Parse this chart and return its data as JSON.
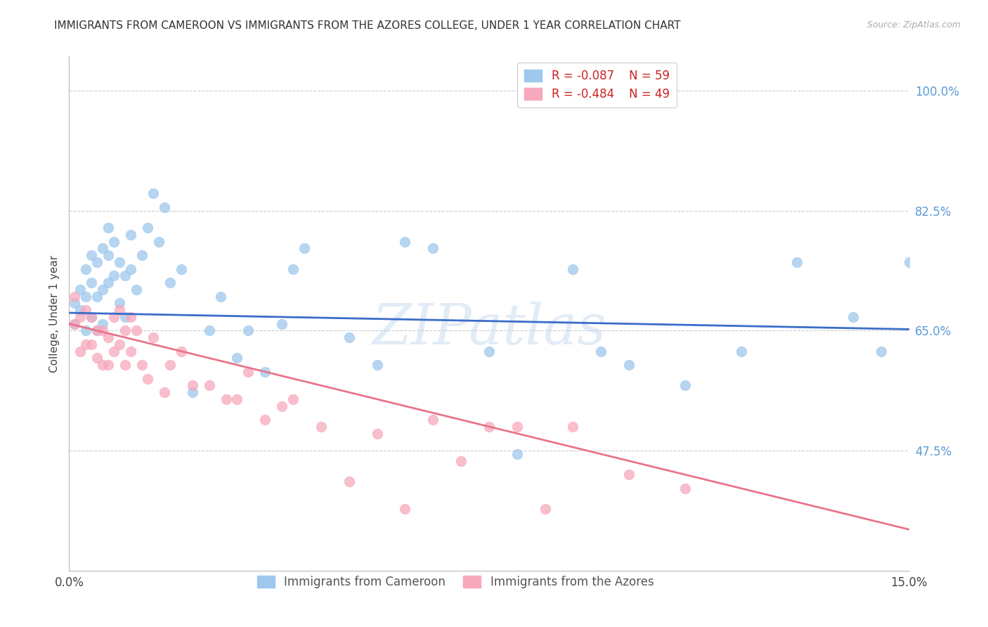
{
  "title": "IMMIGRANTS FROM CAMEROON VS IMMIGRANTS FROM THE AZORES COLLEGE, UNDER 1 YEAR CORRELATION CHART",
  "source": "Source: ZipAtlas.com",
  "ylabel": "College, Under 1 year",
  "xlim": [
    0.0,
    0.15
  ],
  "ylim": [
    0.3,
    1.05
  ],
  "xtick_positions": [
    0.0,
    0.05,
    0.1,
    0.15
  ],
  "xticklabels": [
    "0.0%",
    "",
    "",
    "15.0%"
  ],
  "ytick_positions": [
    0.475,
    0.65,
    0.825,
    1.0
  ],
  "yticklabels": [
    "47.5%",
    "65.0%",
    "82.5%",
    "100.0%"
  ],
  "grid_color": "#cccccc",
  "background_color": "#ffffff",
  "watermark": "ZIPatlas",
  "legend_r1": "R = -0.087",
  "legend_n1": "N = 59",
  "legend_r2": "R = -0.484",
  "legend_n2": "N = 49",
  "series1_color": "#9ec8ed",
  "series2_color": "#f7a8bc",
  "line1_color": "#3a6dc9",
  "line2_color": "#e8758a",
  "title_fontsize": 11,
  "axis_label_fontsize": 11,
  "tick_fontsize": 12,
  "source_fontsize": 9,
  "series1_x": [
    0.001,
    0.001,
    0.002,
    0.002,
    0.003,
    0.003,
    0.003,
    0.004,
    0.004,
    0.004,
    0.005,
    0.005,
    0.005,
    0.006,
    0.006,
    0.006,
    0.007,
    0.007,
    0.007,
    0.008,
    0.008,
    0.009,
    0.009,
    0.01,
    0.01,
    0.011,
    0.011,
    0.012,
    0.013,
    0.014,
    0.015,
    0.016,
    0.017,
    0.018,
    0.02,
    0.022,
    0.025,
    0.027,
    0.03,
    0.032,
    0.035,
    0.038,
    0.04,
    0.042,
    0.05,
    0.055,
    0.06,
    0.065,
    0.075,
    0.08,
    0.09,
    0.095,
    0.1,
    0.11,
    0.12,
    0.13,
    0.14,
    0.145,
    0.15
  ],
  "series1_y": [
    0.66,
    0.69,
    0.68,
    0.71,
    0.65,
    0.7,
    0.74,
    0.67,
    0.72,
    0.76,
    0.65,
    0.7,
    0.75,
    0.66,
    0.71,
    0.77,
    0.72,
    0.76,
    0.8,
    0.73,
    0.78,
    0.69,
    0.75,
    0.67,
    0.73,
    0.74,
    0.79,
    0.71,
    0.76,
    0.8,
    0.85,
    0.78,
    0.83,
    0.72,
    0.74,
    0.56,
    0.65,
    0.7,
    0.61,
    0.65,
    0.59,
    0.66,
    0.74,
    0.77,
    0.64,
    0.6,
    0.78,
    0.77,
    0.62,
    0.47,
    0.74,
    0.62,
    0.6,
    0.57,
    0.62,
    0.75,
    0.67,
    0.62,
    0.75
  ],
  "series2_x": [
    0.001,
    0.001,
    0.002,
    0.002,
    0.003,
    0.003,
    0.004,
    0.004,
    0.005,
    0.005,
    0.006,
    0.006,
    0.007,
    0.007,
    0.008,
    0.008,
    0.009,
    0.009,
    0.01,
    0.01,
    0.011,
    0.011,
    0.012,
    0.013,
    0.014,
    0.015,
    0.017,
    0.018,
    0.02,
    0.022,
    0.025,
    0.028,
    0.03,
    0.032,
    0.035,
    0.038,
    0.04,
    0.045,
    0.05,
    0.055,
    0.06,
    0.065,
    0.07,
    0.075,
    0.08,
    0.085,
    0.09,
    0.1,
    0.11
  ],
  "series2_y": [
    0.66,
    0.7,
    0.62,
    0.67,
    0.63,
    0.68,
    0.63,
    0.67,
    0.61,
    0.65,
    0.6,
    0.65,
    0.6,
    0.64,
    0.62,
    0.67,
    0.63,
    0.68,
    0.6,
    0.65,
    0.62,
    0.67,
    0.65,
    0.6,
    0.58,
    0.64,
    0.56,
    0.6,
    0.62,
    0.57,
    0.57,
    0.55,
    0.55,
    0.59,
    0.52,
    0.54,
    0.55,
    0.51,
    0.43,
    0.5,
    0.39,
    0.52,
    0.46,
    0.51,
    0.51,
    0.39,
    0.51,
    0.44,
    0.42
  ],
  "line1_x": [
    0.0,
    0.15
  ],
  "line1_y": [
    0.676,
    0.652
  ],
  "line2_x": [
    0.0,
    0.15
  ],
  "line2_y": [
    0.66,
    0.36
  ]
}
